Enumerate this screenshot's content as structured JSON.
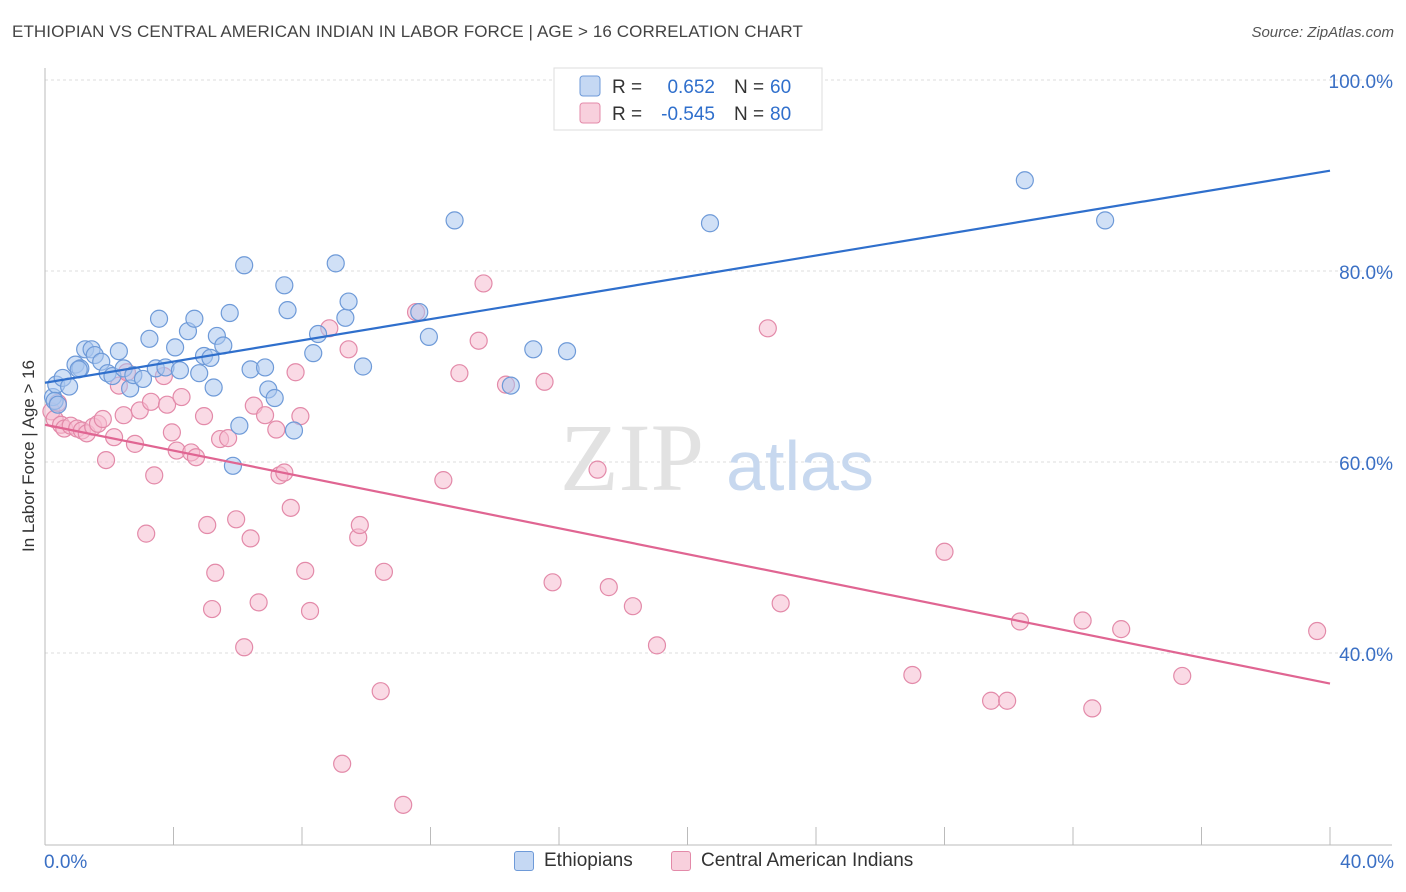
{
  "title": "ETHIOPIAN VS CENTRAL AMERICAN INDIAN IN LABOR FORCE | AGE > 16 CORRELATION CHART",
  "source": "Source: ZipAtlas.com",
  "watermark": {
    "zip": "ZIP",
    "atlas": "atlas"
  },
  "colors": {
    "blue": "#2f6fcc",
    "blue_fill": "#a9c6ef",
    "pink": "#e06592",
    "pink_fill": "#f5bccf",
    "grid": "#d9d9d9",
    "axis_text": "#3a6fc4"
  },
  "stats_legend": [
    {
      "r_label": "R =",
      "r_value": "0.652",
      "n_label": "N =",
      "n_value": "60"
    },
    {
      "r_label": "R =",
      "r_value": "-0.545",
      "n_label": "N =",
      "n_value": "80"
    }
  ],
  "chart_data": {
    "type": "scatter",
    "title": "ETHIOPIAN VS CENTRAL AMERICAN INDIAN IN LABOR FORCE | AGE > 16 CORRELATION CHART",
    "xlabel": "",
    "ylabel": "In Labor Force | Age > 16",
    "xlim": [
      0,
      40
    ],
    "ylim": [
      20,
      100
    ],
    "x_tick_labels": [
      "0.0%",
      "40.0%"
    ],
    "y_tick_values": [
      40,
      60,
      80,
      100
    ],
    "y_tick_labels": [
      "40.0%",
      "60.0%",
      "80.0%",
      "100.0%"
    ],
    "grid": true,
    "legend_placement": "bottom",
    "series": [
      {
        "name": "Ethiopians",
        "color": "#2f6fcc",
        "trend": {
          "x": [
            0,
            40
          ],
          "y": [
            68.3,
            90.5
          ]
        },
        "points": [
          [
            0.25,
            66.8
          ],
          [
            0.35,
            68.1
          ],
          [
            0.55,
            68.8
          ],
          [
            0.75,
            67.9
          ],
          [
            0.95,
            70.2
          ],
          [
            1.1,
            69.8
          ],
          [
            1.25,
            71.8
          ],
          [
            1.45,
            71.8
          ],
          [
            1.55,
            71.2
          ],
          [
            1.75,
            70.5
          ],
          [
            1.95,
            69.3
          ],
          [
            2.1,
            69.0
          ],
          [
            2.3,
            71.6
          ],
          [
            2.45,
            69.8
          ],
          [
            2.65,
            67.7
          ],
          [
            2.75,
            69.1
          ],
          [
            3.05,
            68.7
          ],
          [
            3.25,
            72.9
          ],
          [
            3.45,
            69.8
          ],
          [
            3.55,
            75.0
          ],
          [
            3.75,
            69.9
          ],
          [
            4.05,
            72.0
          ],
          [
            4.2,
            69.6
          ],
          [
            4.45,
            73.7
          ],
          [
            4.65,
            75.0
          ],
          [
            4.8,
            69.3
          ],
          [
            4.95,
            71.1
          ],
          [
            5.15,
            70.9
          ],
          [
            5.25,
            67.8
          ],
          [
            5.35,
            73.2
          ],
          [
            5.55,
            72.2
          ],
          [
            5.75,
            75.6
          ],
          [
            5.85,
            59.6
          ],
          [
            6.05,
            63.8
          ],
          [
            6.2,
            80.6
          ],
          [
            6.4,
            69.7
          ],
          [
            6.85,
            69.9
          ],
          [
            6.95,
            67.6
          ],
          [
            7.15,
            66.7
          ],
          [
            7.45,
            78.5
          ],
          [
            7.55,
            75.9
          ],
          [
            7.75,
            63.3
          ],
          [
            8.35,
            71.4
          ],
          [
            8.5,
            73.4
          ],
          [
            9.05,
            80.8
          ],
          [
            9.35,
            75.1
          ],
          [
            9.45,
            76.8
          ],
          [
            9.9,
            70.0
          ],
          [
            11.65,
            75.7
          ],
          [
            11.95,
            73.1
          ],
          [
            12.75,
            85.3
          ],
          [
            14.5,
            68.0
          ],
          [
            15.2,
            71.8
          ],
          [
            16.25,
            71.6
          ],
          [
            20.7,
            85.0
          ],
          [
            30.5,
            89.5
          ],
          [
            33.0,
            85.3
          ],
          [
            0.3,
            66.4
          ],
          [
            0.4,
            66.0
          ],
          [
            1.05,
            69.7
          ]
        ]
      },
      {
        "name": "Central American Indians",
        "color": "#e06592",
        "trend": {
          "x": [
            0,
            40
          ],
          "y": [
            63.9,
            36.8
          ]
        },
        "points": [
          [
            0.2,
            65.3
          ],
          [
            0.3,
            64.5
          ],
          [
            0.4,
            66.2
          ],
          [
            0.5,
            63.9
          ],
          [
            0.6,
            63.5
          ],
          [
            0.8,
            63.8
          ],
          [
            1.0,
            63.5
          ],
          [
            1.15,
            63.3
          ],
          [
            1.3,
            63.0
          ],
          [
            1.5,
            63.7
          ],
          [
            1.65,
            64.0
          ],
          [
            1.8,
            64.5
          ],
          [
            1.9,
            60.2
          ],
          [
            2.15,
            62.6
          ],
          [
            2.3,
            68.0
          ],
          [
            2.45,
            64.9
          ],
          [
            2.55,
            69.4
          ],
          [
            2.8,
            61.9
          ],
          [
            2.95,
            65.4
          ],
          [
            3.15,
            52.5
          ],
          [
            3.3,
            66.3
          ],
          [
            3.4,
            58.6
          ],
          [
            3.7,
            69.0
          ],
          [
            3.8,
            66.0
          ],
          [
            3.95,
            63.1
          ],
          [
            4.1,
            61.2
          ],
          [
            4.25,
            66.8
          ],
          [
            4.55,
            61.0
          ],
          [
            4.7,
            60.5
          ],
          [
            4.95,
            64.8
          ],
          [
            5.05,
            53.4
          ],
          [
            5.2,
            44.6
          ],
          [
            5.3,
            48.4
          ],
          [
            5.45,
            62.4
          ],
          [
            5.7,
            62.5
          ],
          [
            5.95,
            54.0
          ],
          [
            6.2,
            40.6
          ],
          [
            6.4,
            52.0
          ],
          [
            6.5,
            65.9
          ],
          [
            6.65,
            45.3
          ],
          [
            6.85,
            64.9
          ],
          [
            7.2,
            63.4
          ],
          [
            7.3,
            58.6
          ],
          [
            7.45,
            58.9
          ],
          [
            7.65,
            55.2
          ],
          [
            7.8,
            69.4
          ],
          [
            7.95,
            64.8
          ],
          [
            8.1,
            48.6
          ],
          [
            8.25,
            44.4
          ],
          [
            8.85,
            74.0
          ],
          [
            9.25,
            28.4
          ],
          [
            9.45,
            71.8
          ],
          [
            9.75,
            52.1
          ],
          [
            9.8,
            53.4
          ],
          [
            10.45,
            36.0
          ],
          [
            10.55,
            48.5
          ],
          [
            11.15,
            24.1
          ],
          [
            11.55,
            75.7
          ],
          [
            12.4,
            58.1
          ],
          [
            12.9,
            69.3
          ],
          [
            13.5,
            72.7
          ],
          [
            13.65,
            78.7
          ],
          [
            14.35,
            68.1
          ],
          [
            15.55,
            68.4
          ],
          [
            15.8,
            47.4
          ],
          [
            17.2,
            59.2
          ],
          [
            17.55,
            46.9
          ],
          [
            18.3,
            44.9
          ],
          [
            19.05,
            40.8
          ],
          [
            22.5,
            74.0
          ],
          [
            22.9,
            45.2
          ],
          [
            27.0,
            37.7
          ],
          [
            28.0,
            50.6
          ],
          [
            29.45,
            35.0
          ],
          [
            29.95,
            35.0
          ],
          [
            30.35,
            43.3
          ],
          [
            32.3,
            43.4
          ],
          [
            32.6,
            34.2
          ],
          [
            33.5,
            42.5
          ],
          [
            35.4,
            37.6
          ]
        ]
      }
    ]
  },
  "extra_pink_point": [
    39.6,
    42.3
  ]
}
